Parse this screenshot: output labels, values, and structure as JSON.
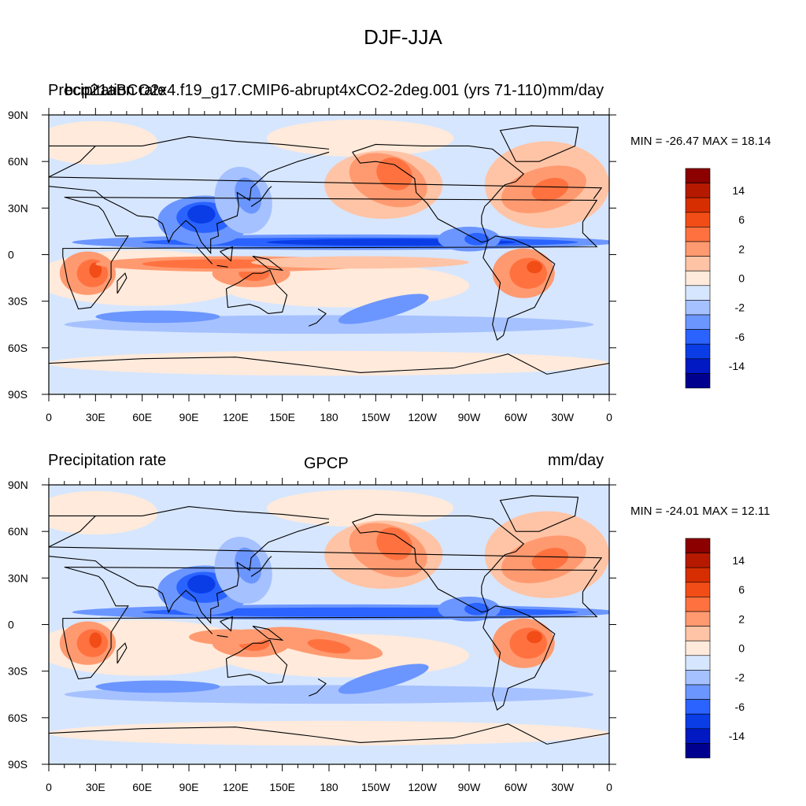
{
  "title": "DJF-JJA",
  "colors": {
    "bins": [
      "#00008f",
      "#0019c2",
      "#0a3de6",
      "#2a63ff",
      "#6b96ff",
      "#a6c1ff",
      "#d6e6ff",
      "#ffeadb",
      "#ffc4a6",
      "#ff9a70",
      "#ff7240",
      "#f24d17",
      "#d62e00",
      "#b51a00",
      "#8c0000"
    ],
    "land_outline": "#000000"
  },
  "colorbar_labels": [
    "14",
    "6",
    "2",
    "0",
    "-2",
    "-6",
    "-14"
  ],
  "axes": {
    "lat_labels": [
      "90N",
      "60N",
      "30N",
      "0",
      "30S",
      "60S",
      "90S"
    ],
    "lon_labels": [
      "0",
      "30E",
      "60E",
      "90E",
      "120E",
      "150E",
      "180",
      "150W",
      "120W",
      "90W",
      "60W",
      "30W",
      "0"
    ]
  },
  "panels": [
    {
      "left_label": "Precipitation rate",
      "center_label": "bcp21aBCO2x4.f19_g17.CMIP6-abrupt4xCO2-2deg.001 (yrs 71-110)",
      "right_label": "mm/day",
      "min_label": "MIN = -26.47",
      "max_label": "MAX =  18.14"
    },
    {
      "left_label": "Precipitation rate",
      "center_label": "GPCP",
      "right_label": "mm/day",
      "min_label": "MIN = -24.01",
      "max_label": "MAX =  12.11"
    }
  ]
}
